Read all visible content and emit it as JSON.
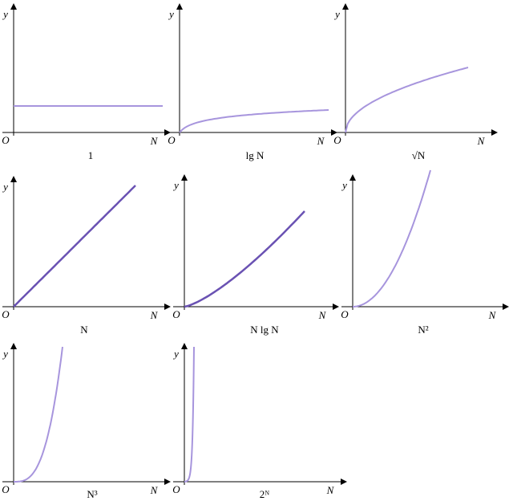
{
  "panels": [
    {
      "y_label": "y",
      "origin": "O",
      "x_label": "N",
      "caption": "1"
    },
    {
      "y_label": "y",
      "origin": "O",
      "x_label": "N",
      "caption": "lg N"
    },
    {
      "y_label": "y",
      "origin": "O",
      "x_label": "N",
      "caption": "√N"
    },
    {
      "y_label": "y",
      "origin": "O",
      "x_label": "N",
      "caption": "N"
    },
    {
      "y_label": "y",
      "origin": "O",
      "x_label": "N",
      "caption": "N lg N"
    },
    {
      "y_label": "y",
      "origin": "O",
      "x_label": "N",
      "caption": "N²"
    },
    {
      "y_label": "y",
      "origin": "O",
      "x_label": "N",
      "caption": "N³"
    },
    {
      "y_label": "y",
      "origin": "O",
      "x_label": "N",
      "caption": "2ᴺ"
    }
  ]
}
